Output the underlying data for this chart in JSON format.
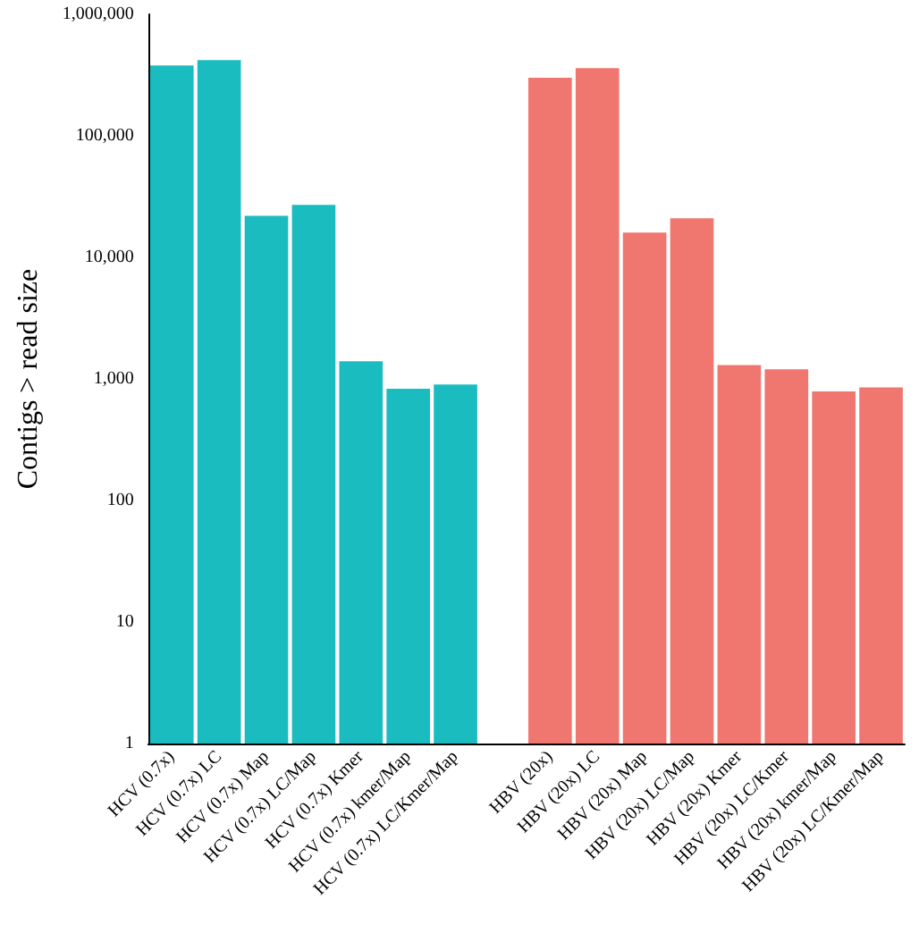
{
  "chart_data": {
    "type": "bar",
    "ylabel": "Contigs > read size",
    "categories": [
      "HCV (0.7x)",
      "HCV (0.7x) LC",
      "HCV (0.7x) Map",
      "HCV (0.7x) LC/Map",
      "HCV (0.7x) Kmer",
      "HCV (0.7x) kmer/Map",
      "HCV (0.7x) LC/Kmer/Map",
      null,
      "HBV (20x)",
      "HBV (20x) LC",
      "HBV (20x) Map",
      "HBV (20x) LC/Map",
      "HBV (20x) Kmer",
      "HBV (20x) LC/Kmer",
      "HBV (20x) kmer/Map",
      "HBV (20x) LC/Kmer/Map"
    ],
    "series": [
      {
        "color": "#1bbcc0",
        "values": [
          380000,
          420000,
          22000,
          27000,
          1400,
          830,
          900,
          null,
          null,
          null,
          null,
          null,
          null,
          null,
          null,
          null
        ]
      },
      {
        "color": "#f07670",
        "values": [
          null,
          null,
          null,
          null,
          null,
          null,
          null,
          null,
          300000,
          360000,
          16000,
          21000,
          1300,
          1200,
          790,
          850
        ]
      }
    ],
    "log": "y",
    "ylim": [
      1,
      1000000
    ],
    "yticks": [
      1,
      10,
      100,
      {
        "value": 1000,
        "label": "1,000"
      },
      {
        "value": 10000,
        "label": "10,000"
      },
      {
        "value": 100000,
        "label": "100,000"
      },
      {
        "value": 1000000,
        "label": "1,000,000"
      }
    ]
  }
}
